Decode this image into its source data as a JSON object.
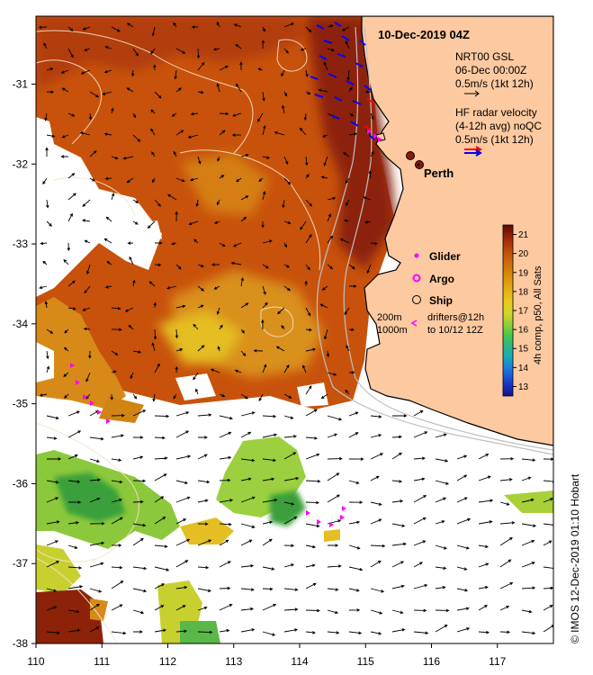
{
  "title": "10-Dec-2019 04Z",
  "place_label": "Perth",
  "place_lon": 115.86,
  "place_lat": -31.95,
  "axes": {
    "x_ticks": [
      "110",
      "111",
      "112",
      "113",
      "114",
      "115",
      "116",
      "117"
    ],
    "y_ticks": [
      "-31",
      "-32",
      "-33",
      "-34",
      "-35",
      "-36",
      "-37",
      "-38"
    ],
    "lon_range": [
      110,
      117.85
    ],
    "lat_range": [
      -30.15,
      -38
    ]
  },
  "legend": {
    "gsl_line1": "NRT00 GSL",
    "gsl_line2": "06-Dec 00:00Z",
    "gsl_scale": "0.5m/s (1kt 12h)",
    "hf_line1": "HF radar velocity",
    "hf_line2": "(4-12h avg) noQC",
    "hf_scale": "0.5m/s (1kt 12h)",
    "glider": "Glider",
    "argo": "Argo",
    "ship": "Ship",
    "contour_200": "200m",
    "contour_1000": "1000m",
    "drifters_line1": "drifters@12h",
    "drifters_line2": "to 10/12 12Z"
  },
  "colorbar": {
    "ticks": [
      "21",
      "20",
      "19",
      "18",
      "17",
      "16",
      "15",
      "14",
      "13"
    ],
    "label": "4h comp, p50, All Sats",
    "min": 12.5,
    "max": 21.5,
    "colors": [
      "#5a0a05",
      "#a02808",
      "#c45a0a",
      "#d8840c",
      "#e2a810",
      "#e8c81a",
      "#cfd62a",
      "#8ed23a",
      "#4ec84a",
      "#2eb87e",
      "#18aab8",
      "#1a7ae0",
      "#1a3cc8",
      "#12108c"
    ]
  },
  "credit": "© IMOS 12-Dec-2019 01:10 Hobart",
  "colors": {
    "land": "#fdc9a0",
    "sst_warm_dark": "#8c2308",
    "sst_warm": "#c8520c",
    "sst_orange": "#d88a18",
    "sst_yellow": "#e4be22",
    "sst_green": "#8cc83c",
    "sst_green_dark": "#3aa03a",
    "ship": "#8c1a10",
    "hf_red": "#ff0000",
    "hf_blue": "#0000ff",
    "glider": "#ff00ff"
  }
}
